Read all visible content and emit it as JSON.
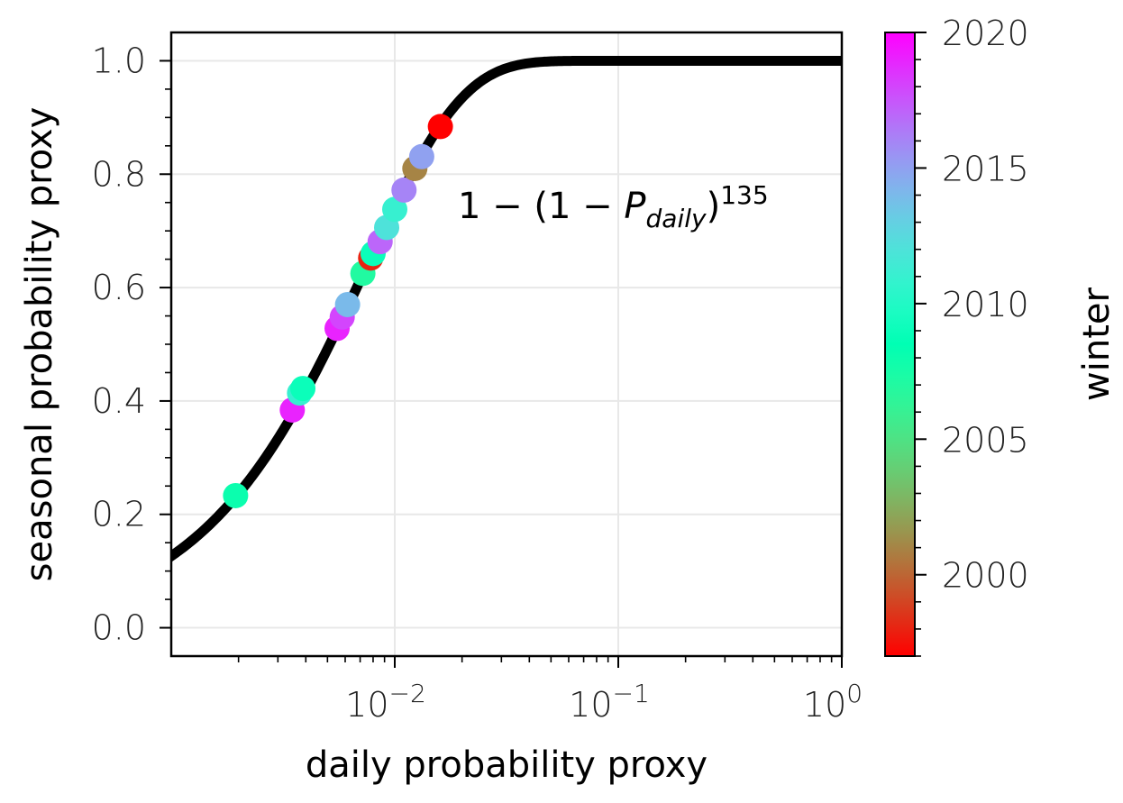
{
  "chart_data": {
    "type": "scatter",
    "xscale": "log",
    "xlim": [
      0.001,
      1
    ],
    "ylim": [
      -0.05,
      1.05
    ],
    "xlabel": "daily probability proxy",
    "ylabel": "seasonal probability proxy",
    "grid": true,
    "x_ticks": [
      {
        "value": 0.01,
        "base": "10",
        "exp": "−2"
      },
      {
        "value": 0.1,
        "base": "10",
        "exp": "−1"
      },
      {
        "value": 1,
        "base": "10",
        "exp": "0"
      }
    ],
    "y_ticks": [
      {
        "value": 0.0,
        "label": "0.0"
      },
      {
        "value": 0.2,
        "label": "0.2"
      },
      {
        "value": 0.4,
        "label": "0.4"
      },
      {
        "value": 0.6,
        "label": "0.6"
      },
      {
        "value": 0.8,
        "label": "0.8"
      },
      {
        "value": 1.0,
        "label": "1.0"
      }
    ],
    "curve": {
      "formula": "1 - (1 - P_daily)^135",
      "exponent": 135,
      "color": "#000000"
    },
    "annotation": {
      "prefix": "1 − (1 − ",
      "var": "P",
      "sub": "daily",
      "suffix": ")",
      "sup": "135"
    },
    "colorbar": {
      "label": "winter",
      "range": [
        1997,
        2020
      ],
      "ticks": [
        {
          "value": 2000,
          "label": "2000"
        },
        {
          "value": 2005,
          "label": "2005"
        },
        {
          "value": 2010,
          "label": "2010"
        },
        {
          "value": 2015,
          "label": "2015"
        },
        {
          "value": 2020,
          "label": "2020"
        }
      ],
      "colormap": "rainbow"
    },
    "points": [
      {
        "x": 0.00194,
        "y": 0.233,
        "winter": 2008
      },
      {
        "x": 0.00348,
        "y": 0.384,
        "winter": 2019
      },
      {
        "x": 0.00375,
        "y": 0.414,
        "winter": 2011
      },
      {
        "x": 0.00388,
        "y": 0.422,
        "winter": 2009
      },
      {
        "x": 0.00552,
        "y": 0.528,
        "winter": 2019
      },
      {
        "x": 0.00582,
        "y": 0.548,
        "winter": 2018
      },
      {
        "x": 0.00615,
        "y": 0.57,
        "winter": 2014
      },
      {
        "x": 0.0072,
        "y": 0.625,
        "winter": 2007
      },
      {
        "x": 0.0078,
        "y": 0.652,
        "winter": 1998
      },
      {
        "x": 0.008,
        "y": 0.66,
        "winter": 2009
      },
      {
        "x": 0.0086,
        "y": 0.681,
        "winter": 2017
      },
      {
        "x": 0.0092,
        "y": 0.706,
        "winter": 2012
      },
      {
        "x": 0.01,
        "y": 0.738,
        "winter": 2011
      },
      {
        "x": 0.011,
        "y": 0.772,
        "winter": 2016
      },
      {
        "x": 0.0123,
        "y": 0.81,
        "winter": 2001
      },
      {
        "x": 0.0132,
        "y": 0.831,
        "winter": 2015
      },
      {
        "x": 0.016,
        "y": 0.884,
        "winter": 1997
      }
    ]
  }
}
